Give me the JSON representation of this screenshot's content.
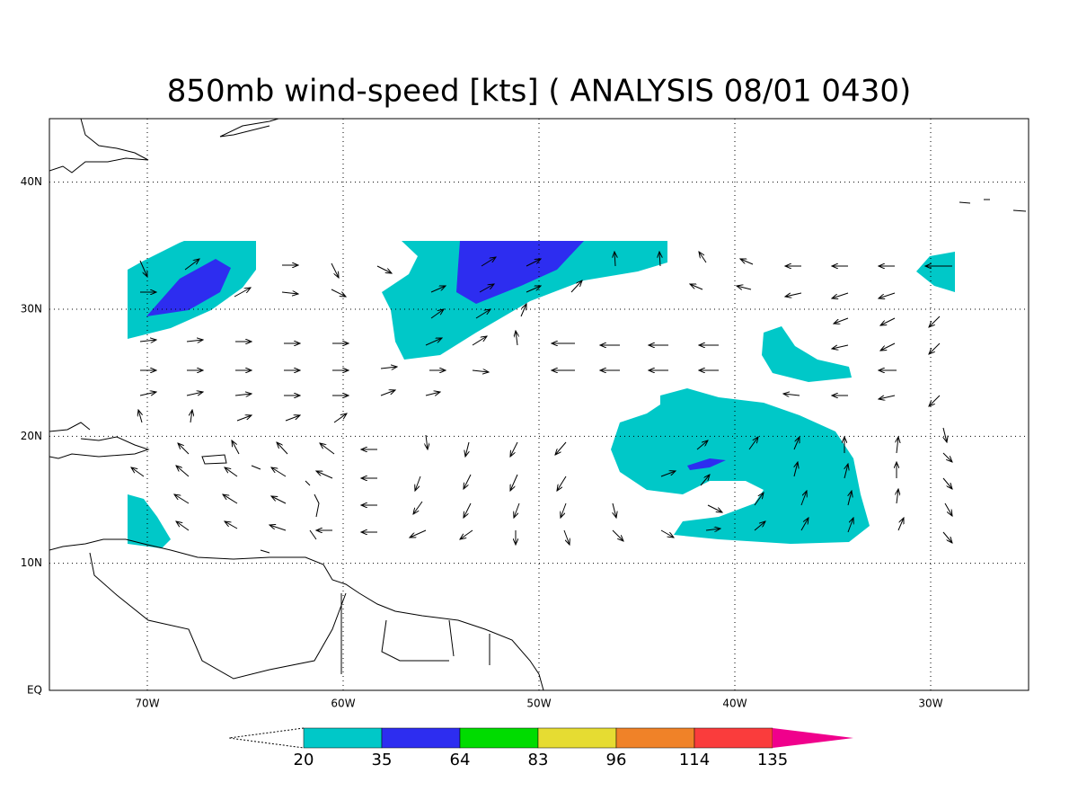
{
  "title": "850mb wind-speed [kts] ( ANALYSIS 08/01 0430)",
  "map": {
    "xlim": [
      -75,
      -25
    ],
    "ylim": [
      0,
      45
    ],
    "grid": true,
    "lon_ticks": [
      {
        "value": -70,
        "label": "70W"
      },
      {
        "value": -60,
        "label": "60W"
      },
      {
        "value": -50,
        "label": "50W"
      },
      {
        "value": -40,
        "label": "40W"
      },
      {
        "value": -30,
        "label": "30W"
      }
    ],
    "lat_ticks": [
      {
        "value": 0,
        "label": "EQ"
      },
      {
        "value": 10,
        "label": "10N"
      },
      {
        "value": 20,
        "label": "20N"
      },
      {
        "value": 30,
        "label": "30N"
      },
      {
        "value": 40,
        "label": "40N"
      }
    ]
  },
  "colorbar": {
    "levels": [
      20,
      35,
      64,
      83,
      96,
      114,
      135
    ],
    "colors": [
      "#ffffff",
      "#00c8c8",
      "#2d2df0",
      "#00dc00",
      "#e6dc32",
      "#f08228",
      "#fa3c3c",
      "#f0008c"
    ]
  }
}
